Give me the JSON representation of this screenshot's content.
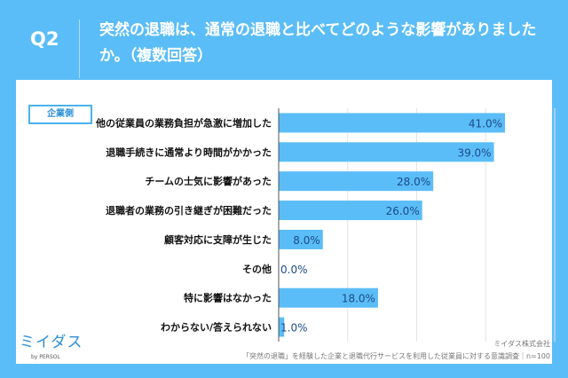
{
  "header": {
    "q": "Q2",
    "title": "突然の退職は、通常の退職と比べてどのような影響がありましたか。（複数回答）"
  },
  "tag": "企業側",
  "footer": {
    "logo": "ミイダス",
    "logo_sub": "by PERSOL",
    "company": "ミイダス株式会社",
    "source": "「突然の退職」を経験した企業と退職代行サービスを利用した従業員に対する意識調査｜n=100"
  },
  "colors": {
    "bar": "#5bbdf7",
    "label": "#1b4a8a"
  },
  "chart_data": {
    "type": "bar",
    "orientation": "horizontal",
    "xlim": [
      0,
      50
    ],
    "grid": true,
    "categories": [
      "他の従業員の業務負担が急激に増加した",
      "退職手続きに通常より時間がかかった",
      "チームの士気に影響があった",
      "退職者の業務の引き継ぎが困難だった",
      "顧客対応に支障が生じた",
      "その他",
      "特に影響はなかった",
      "わからない/答えられない"
    ],
    "values": [
      41.0,
      39.0,
      28.0,
      26.0,
      8.0,
      0.0,
      18.0,
      1.0
    ],
    "labels": [
      "41.0%",
      "39.0%",
      "28.0%",
      "26.0%",
      "8.0%",
      "0.0%",
      "18.0%",
      "1.0%"
    ]
  }
}
